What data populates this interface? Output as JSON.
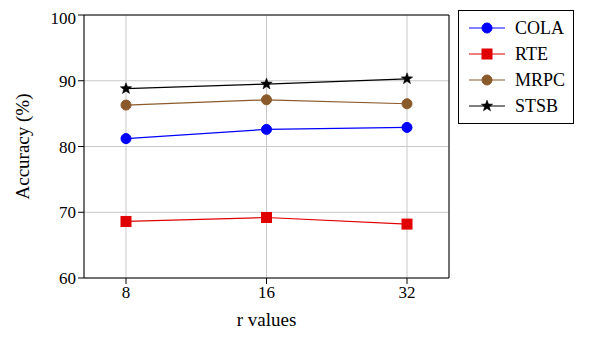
{
  "chart_data": {
    "type": "line",
    "x_label": "r values",
    "y_label": "Accuracy (%)",
    "categories": [
      8,
      16,
      32
    ],
    "series": [
      {
        "name": "COLA",
        "color": "#0000ff",
        "marker": "circle",
        "values": [
          81.2,
          82.6,
          82.9
        ]
      },
      {
        "name": "RTE",
        "color": "#e00000",
        "marker": "square",
        "values": [
          68.6,
          69.2,
          68.2
        ]
      },
      {
        "name": "MRPC",
        "color": "#8b5a2b",
        "marker": "circle",
        "values": [
          86.3,
          87.1,
          86.5
        ]
      },
      {
        "name": "STSB",
        "color": "#000000",
        "marker": "star",
        "values": [
          88.8,
          89.5,
          90.3
        ]
      }
    ],
    "ylim": [
      60,
      100
    ],
    "yticks": [
      60,
      70,
      80,
      90,
      100
    ],
    "grid": true,
    "legend": "right"
  }
}
